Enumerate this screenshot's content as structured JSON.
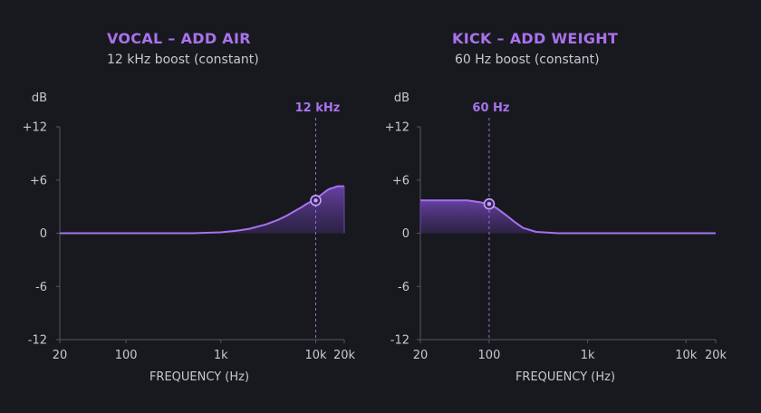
{
  "colors": {
    "background": "#18191e",
    "accent": "#a872ee",
    "axis": "#55565f",
    "text": "#c8c8d0",
    "fill": "#5a3d8e"
  },
  "chart_data": [
    {
      "type": "line",
      "title": "VOCAL – ADD AIR",
      "subtitle": "12 kHz boost (constant)",
      "xlabel": "FREQUENCY (Hz)",
      "ylabel": "dB",
      "x_scale": "log",
      "xlim": [
        20,
        20000
      ],
      "ylim": [
        -12,
        12
      ],
      "x_ticks": [
        {
          "value": 20,
          "label": "20"
        },
        {
          "value": 100,
          "label": "100"
        },
        {
          "value": 1000,
          "label": "1k"
        },
        {
          "value": 10000,
          "label": "10k"
        },
        {
          "value": 20000,
          "label": "20k"
        }
      ],
      "y_ticks": [
        {
          "value": 12,
          "label": "+12"
        },
        {
          "value": 6,
          "label": "+6"
        },
        {
          "value": 0,
          "label": "0"
        },
        {
          "value": -6,
          "label": "-6"
        },
        {
          "value": -12,
          "label": "-12"
        }
      ],
      "marker": {
        "x": 10000,
        "y": 3.7,
        "label": "12 kHz"
      },
      "series": [
        {
          "x": [
            20,
            100,
            500,
            1000,
            1500,
            2000,
            3000,
            4000,
            5000,
            6000,
            7000,
            8000,
            9000,
            10000,
            11000,
            12000,
            13000,
            14000,
            15000,
            16000,
            17000,
            20000
          ],
          "y": [
            0,
            0,
            0,
            0.1,
            0.3,
            0.5,
            1.0,
            1.5,
            2.0,
            2.5,
            2.9,
            3.3,
            3.6,
            3.9,
            4.2,
            4.5,
            4.8,
            5.0,
            5.1,
            5.2,
            5.3,
            5.3
          ]
        }
      ]
    },
    {
      "type": "line",
      "title": "KICK – ADD WEIGHT",
      "subtitle": "60 Hz boost (constant)",
      "xlabel": "FREQUENCY (Hz)",
      "ylabel": "dB",
      "x_scale": "log",
      "xlim": [
        20,
        20000
      ],
      "ylim": [
        -12,
        12
      ],
      "x_ticks": [
        {
          "value": 20,
          "label": "20"
        },
        {
          "value": 100,
          "label": "100"
        },
        {
          "value": 1000,
          "label": "1k"
        },
        {
          "value": 10000,
          "label": "10k"
        },
        {
          "value": 20000,
          "label": "20k"
        }
      ],
      "y_ticks": [
        {
          "value": 12,
          "label": "+12"
        },
        {
          "value": 6,
          "label": "+6"
        },
        {
          "value": 0,
          "label": "0"
        },
        {
          "value": -6,
          "label": "-6"
        },
        {
          "value": -12,
          "label": "-12"
        }
      ],
      "marker": {
        "x": 100,
        "y": 3.3,
        "label": "60 Hz"
      },
      "series": [
        {
          "x": [
            20,
            40,
            60,
            70,
            80,
            90,
            100,
            120,
            150,
            180,
            220,
            300,
            500,
            1000,
            20000
          ],
          "y": [
            3.7,
            3.7,
            3.7,
            3.6,
            3.5,
            3.4,
            3.3,
            2.8,
            2.0,
            1.3,
            0.6,
            0.15,
            0,
            0,
            0
          ]
        }
      ]
    }
  ]
}
